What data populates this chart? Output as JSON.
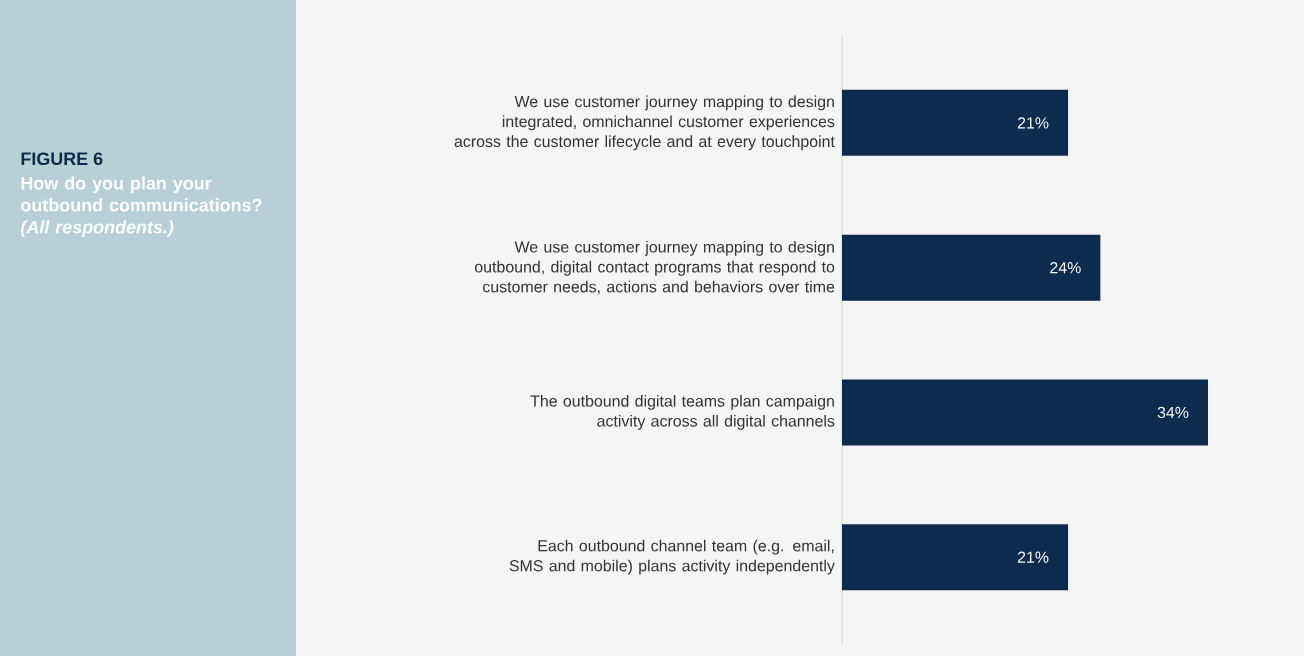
{
  "chart_data": {
    "type": "bar",
    "orientation": "horizontal",
    "title": "FIGURE 6",
    "subtitle": "How do you plan your outbound communications?",
    "annotations": [
      "(All respondents.)"
    ],
    "categories": [
      "We use customer journey mapping to design integrated, omnichannel customer experiences across the customer lifecycle and at every touchpoint",
      "We use customer journey mapping to design outbound, digital contact programs that respond to customer needs, actions and behaviors over time",
      "The outbound digital teams plan campaign activity across all digital channels",
      "Each outbound channel team (e.g. email, SMS and mobile) plans activity independently"
    ],
    "values": [
      21,
      24,
      34,
      21
    ],
    "value_labels": [
      "21%",
      "24%",
      "34%",
      "21%"
    ],
    "color": "#0d2b4d"
  }
}
